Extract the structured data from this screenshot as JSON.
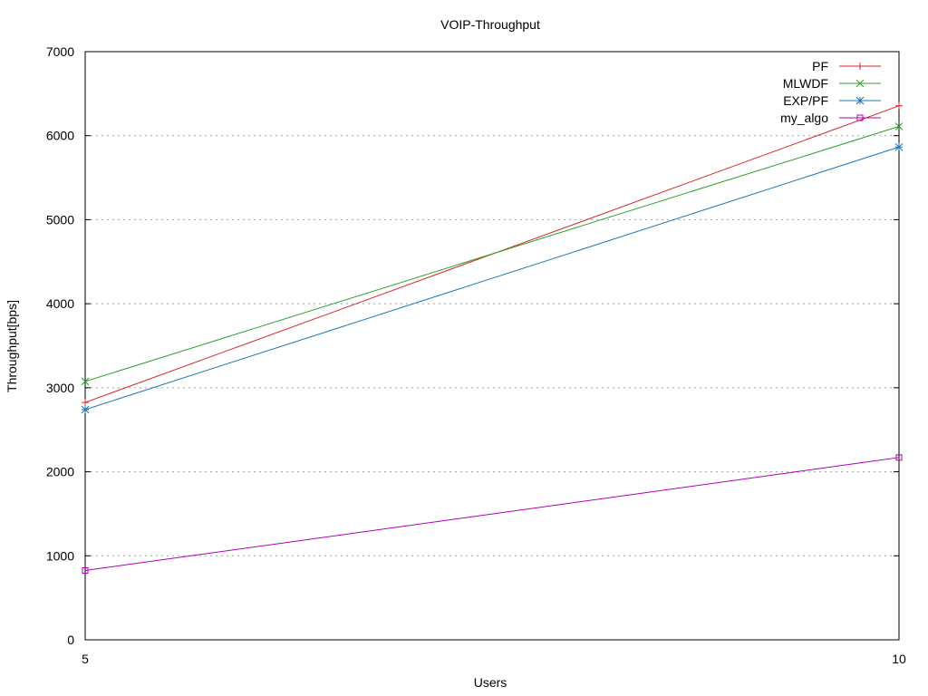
{
  "chart_data": {
    "type": "line",
    "title": "VOIP-Throughput",
    "xlabel": "Users",
    "ylabel": "Throughput[bps]",
    "x": [
      5,
      10
    ],
    "xticks": [
      5,
      10
    ],
    "xlim": [
      5,
      10
    ],
    "yticks": [
      0,
      1000,
      2000,
      3000,
      4000,
      5000,
      6000,
      7000
    ],
    "ylim": [
      0,
      7000
    ],
    "grid": "horizontal dotted",
    "legend_position": "top-right",
    "series": [
      {
        "name": "PF",
        "values": [
          2825,
          6355
        ],
        "color": "#d62728",
        "marker": "plus"
      },
      {
        "name": "MLWDF",
        "values": [
          3075,
          6110
        ],
        "color": "#2ca02c",
        "marker": "cross"
      },
      {
        "name": "EXP/PF",
        "values": [
          2740,
          5865
        ],
        "color": "#1f77b4",
        "marker": "star"
      },
      {
        "name": "my_algo",
        "values": [
          825,
          2170
        ],
        "color": "#b000b0",
        "marker": "square"
      }
    ]
  }
}
